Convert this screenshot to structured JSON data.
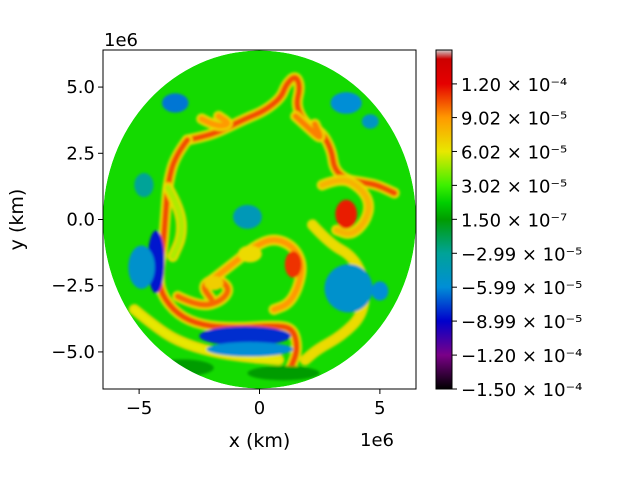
{
  "chart_data": {
    "type": "heatmap",
    "title": "",
    "xlabel": "x (km)",
    "ylabel": "y (km)",
    "x_offset_label": "1e6",
    "y_offset_label": "1e6",
    "xlim": [
      -6.5,
      6.5
    ],
    "ylim": [
      -6.4,
      6.4
    ],
    "domain_radius": 6.4,
    "x_ticks": [
      {
        "value": -5,
        "label": "−5"
      },
      {
        "value": 0,
        "label": "0"
      },
      {
        "value": 5,
        "label": "5"
      }
    ],
    "y_ticks": [
      {
        "value": 5.0,
        "label": "5.0"
      },
      {
        "value": 2.5,
        "label": "2.5"
      },
      {
        "value": 0.0,
        "label": "0.0"
      },
      {
        "value": -2.5,
        "label": "−2.5"
      },
      {
        "value": -5.0,
        "label": "−5.0"
      }
    ],
    "grid": false,
    "colorbar": {
      "min": -0.00015,
      "max": 0.00015,
      "ticks": [
        {
          "value": 0.00012,
          "label": "1.20 × 10⁻⁴"
        },
        {
          "value": 9.02e-05,
          "label": "9.02 × 10⁻⁵"
        },
        {
          "value": 6.02e-05,
          "label": "6.02 × 10⁻⁵"
        },
        {
          "value": 3.02e-05,
          "label": "3.02 × 10⁻⁵"
        },
        {
          "value": 1.5e-07,
          "label": "1.50 × 10⁻⁷"
        },
        {
          "value": -2.99e-05,
          "label": "−2.99 × 10⁻⁵"
        },
        {
          "value": -5.99e-05,
          "label": "−5.99 × 10⁻⁵"
        },
        {
          "value": -8.99e-05,
          "label": "−8.99 × 10⁻⁵"
        },
        {
          "value": -0.00012,
          "label": "−1.20 × 10⁻⁴"
        },
        {
          "value": -0.00015,
          "label": "−1.50 × 10⁻⁴"
        }
      ],
      "colormap": "nipy_spectral",
      "colormap_stops": [
        {
          "value": -0.00015,
          "color": "#000000"
        },
        {
          "value": -0.00012,
          "color": "#7a0088"
        },
        {
          "value": -8.99e-05,
          "color": "#0000cc"
        },
        {
          "value": -5.99e-05,
          "color": "#008ed6"
        },
        {
          "value": -2.99e-05,
          "color": "#00a398"
        },
        {
          "value": 1.5e-07,
          "color": "#009c00"
        },
        {
          "value": 1.5e-05,
          "color": "#00cf00"
        },
        {
          "value": 3.02e-05,
          "color": "#3cf000"
        },
        {
          "value": 6.02e-05,
          "color": "#e8e800"
        },
        {
          "value": 9.02e-05,
          "color": "#ff9900"
        },
        {
          "value": 0.00012,
          "color": "#e50000"
        },
        {
          "value": 0.000142,
          "color": "#cc0000"
        },
        {
          "value": 0.00015,
          "color": "#cccccc"
        }
      ],
      "background_value": 2e-05
    },
    "features": [
      {
        "kind": "band",
        "value": 0.000105,
        "points": [
          [
            -3.0,
            3.0
          ],
          [
            -2.2,
            3.15
          ],
          [
            -1.5,
            3.4
          ],
          [
            -0.6,
            3.8
          ],
          [
            0.2,
            4.1
          ],
          [
            0.9,
            4.6
          ],
          [
            1.1,
            5.1
          ],
          [
            1.5,
            5.45
          ],
          [
            1.7,
            5.0
          ],
          [
            1.5,
            4.3
          ],
          [
            1.9,
            3.6
          ],
          [
            2.6,
            3.3
          ],
          [
            3.0,
            2.6
          ],
          [
            3.1,
            1.9
          ],
          [
            3.6,
            1.5
          ],
          [
            4.3,
            1.4
          ],
          [
            4.9,
            1.3
          ],
          [
            5.6,
            1.0
          ]
        ]
      },
      {
        "kind": "band",
        "value": 0.000105,
        "points": [
          [
            -3.0,
            3.0
          ],
          [
            -3.5,
            2.4
          ],
          [
            -3.8,
            1.4
          ],
          [
            -3.9,
            0.2
          ],
          [
            -4.0,
            -1.0
          ],
          [
            -4.2,
            -2.0
          ],
          [
            -4.1,
            -2.8
          ],
          [
            -3.4,
            -3.6
          ],
          [
            -2.4,
            -4.0
          ],
          [
            -1.0,
            -4.1
          ],
          [
            0.6,
            -4.0
          ],
          [
            1.4,
            -4.1
          ],
          [
            1.6,
            -4.9
          ],
          [
            1.3,
            -5.6
          ]
        ]
      },
      {
        "kind": "band",
        "value": 0.0001,
        "points": [
          [
            -3.4,
            -2.9
          ],
          [
            -2.5,
            -3.3
          ],
          [
            -1.6,
            -3.1
          ],
          [
            -1.2,
            -2.6
          ],
          [
            -1.8,
            -2.2
          ],
          [
            -2.4,
            -2.5
          ],
          [
            -2.0,
            -3.0
          ]
        ]
      },
      {
        "kind": "band",
        "value": 9e-05,
        "points": [
          [
            -2.0,
            -2.3
          ],
          [
            -1.0,
            -1.6
          ],
          [
            -0.2,
            -1.0
          ],
          [
            0.6,
            -0.7
          ],
          [
            1.4,
            -1.0
          ],
          [
            1.8,
            -1.7
          ],
          [
            1.6,
            -2.6
          ],
          [
            1.2,
            -3.2
          ],
          [
            0.6,
            -3.4
          ]
        ]
      },
      {
        "kind": "band",
        "value": 6.5e-05,
        "points": [
          [
            2.2,
            -0.2
          ],
          [
            2.9,
            -0.9
          ],
          [
            3.9,
            -1.4
          ],
          [
            4.4,
            -2.4
          ],
          [
            4.3,
            -3.6
          ],
          [
            3.4,
            -4.4
          ],
          [
            2.4,
            -4.9
          ],
          [
            1.9,
            -5.3
          ]
        ]
      },
      {
        "kind": "band",
        "value": 5e-05,
        "points": [
          [
            -3.8,
            1.2
          ],
          [
            -3.3,
            0.4
          ],
          [
            -3.2,
            -0.6
          ],
          [
            -3.6,
            -1.4
          ]
        ]
      },
      {
        "kind": "band",
        "value": 9e-05,
        "points": [
          [
            -2.4,
            3.8
          ],
          [
            -1.8,
            3.5
          ],
          [
            -1.2,
            3.6
          ],
          [
            -1.7,
            3.9
          ]
        ]
      },
      {
        "kind": "band",
        "value": 9.5e-05,
        "points": [
          [
            1.5,
            3.9
          ],
          [
            2.1,
            3.4
          ],
          [
            2.6,
            3.0
          ],
          [
            2.3,
            3.6
          ]
        ]
      },
      {
        "kind": "band",
        "value": 8e-05,
        "points": [
          [
            2.6,
            1.3
          ],
          [
            3.4,
            1.6
          ],
          [
            4.2,
            1.2
          ],
          [
            4.6,
            0.6
          ],
          [
            4.4,
            -0.1
          ],
          [
            3.8,
            -0.6
          ],
          [
            3.2,
            -0.4
          ]
        ]
      },
      {
        "kind": "band",
        "value": 6e-05,
        "points": [
          [
            -5.2,
            -3.4
          ],
          [
            -4.4,
            -4.0
          ],
          [
            -3.4,
            -4.6
          ],
          [
            -2.0,
            -5.0
          ],
          [
            -0.6,
            -5.2
          ],
          [
            0.8,
            -5.3
          ]
        ]
      },
      {
        "kind": "blob",
        "value": 0.000115,
        "cx": 3.6,
        "cy": 0.2,
        "rx": 0.45,
        "ry": 0.6
      },
      {
        "kind": "blob",
        "value": 0.00011,
        "cx": 1.4,
        "cy": -1.7,
        "rx": 0.35,
        "ry": 0.55
      },
      {
        "kind": "blob",
        "value": -6.5e-05,
        "cx": -3.5,
        "cy": 4.4,
        "rx": 0.55,
        "ry": 0.4
      },
      {
        "kind": "blob",
        "value": -6e-05,
        "cx": 3.6,
        "cy": 4.4,
        "rx": 0.65,
        "ry": 0.45
      },
      {
        "kind": "blob",
        "value": -5e-05,
        "cx": 4.6,
        "cy": 3.7,
        "rx": 0.35,
        "ry": 0.3
      },
      {
        "kind": "blob",
        "value": -8.5e-05,
        "cx": -4.3,
        "cy": -1.6,
        "rx": 0.35,
        "ry": 1.3
      },
      {
        "kind": "blob",
        "value": -5.5e-05,
        "cx": -4.9,
        "cy": -1.8,
        "rx": 0.55,
        "ry": 0.9
      },
      {
        "kind": "blob",
        "value": -5.5e-05,
        "cx": 3.7,
        "cy": -2.6,
        "rx": 1.0,
        "ry": 1.0
      },
      {
        "kind": "blob",
        "value": -8e-05,
        "cx": -0.6,
        "cy": -4.4,
        "rx": 1.9,
        "ry": 0.4
      },
      {
        "kind": "blob",
        "value": -6e-05,
        "cx": -0.4,
        "cy": -4.9,
        "rx": 1.8,
        "ry": 0.3
      },
      {
        "kind": "blob",
        "value": -6e-05,
        "cx": 5.0,
        "cy": -2.7,
        "rx": 0.35,
        "ry": 0.4
      },
      {
        "kind": "blob",
        "value": -4.5e-05,
        "cx": -0.5,
        "cy": 0.1,
        "rx": 0.6,
        "ry": 0.5
      },
      {
        "kind": "blob",
        "value": 7e-05,
        "cx": -1.9,
        "cy": -2.4,
        "rx": 0.4,
        "ry": 0.3
      },
      {
        "kind": "blob",
        "value": 6.5e-05,
        "cx": -0.4,
        "cy": -1.3,
        "rx": 0.5,
        "ry": 0.35
      },
      {
        "kind": "blob",
        "value": -3e-05,
        "cx": -4.8,
        "cy": 1.3,
        "rx": 0.4,
        "ry": 0.5
      },
      {
        "kind": "blob",
        "value": 1.5e-07,
        "cx": -3.2,
        "cy": -5.6,
        "rx": 1.3,
        "ry": 0.35
      },
      {
        "kind": "blob",
        "value": 1.5e-07,
        "cx": 1.0,
        "cy": -5.8,
        "rx": 1.5,
        "ry": 0.3
      }
    ]
  }
}
